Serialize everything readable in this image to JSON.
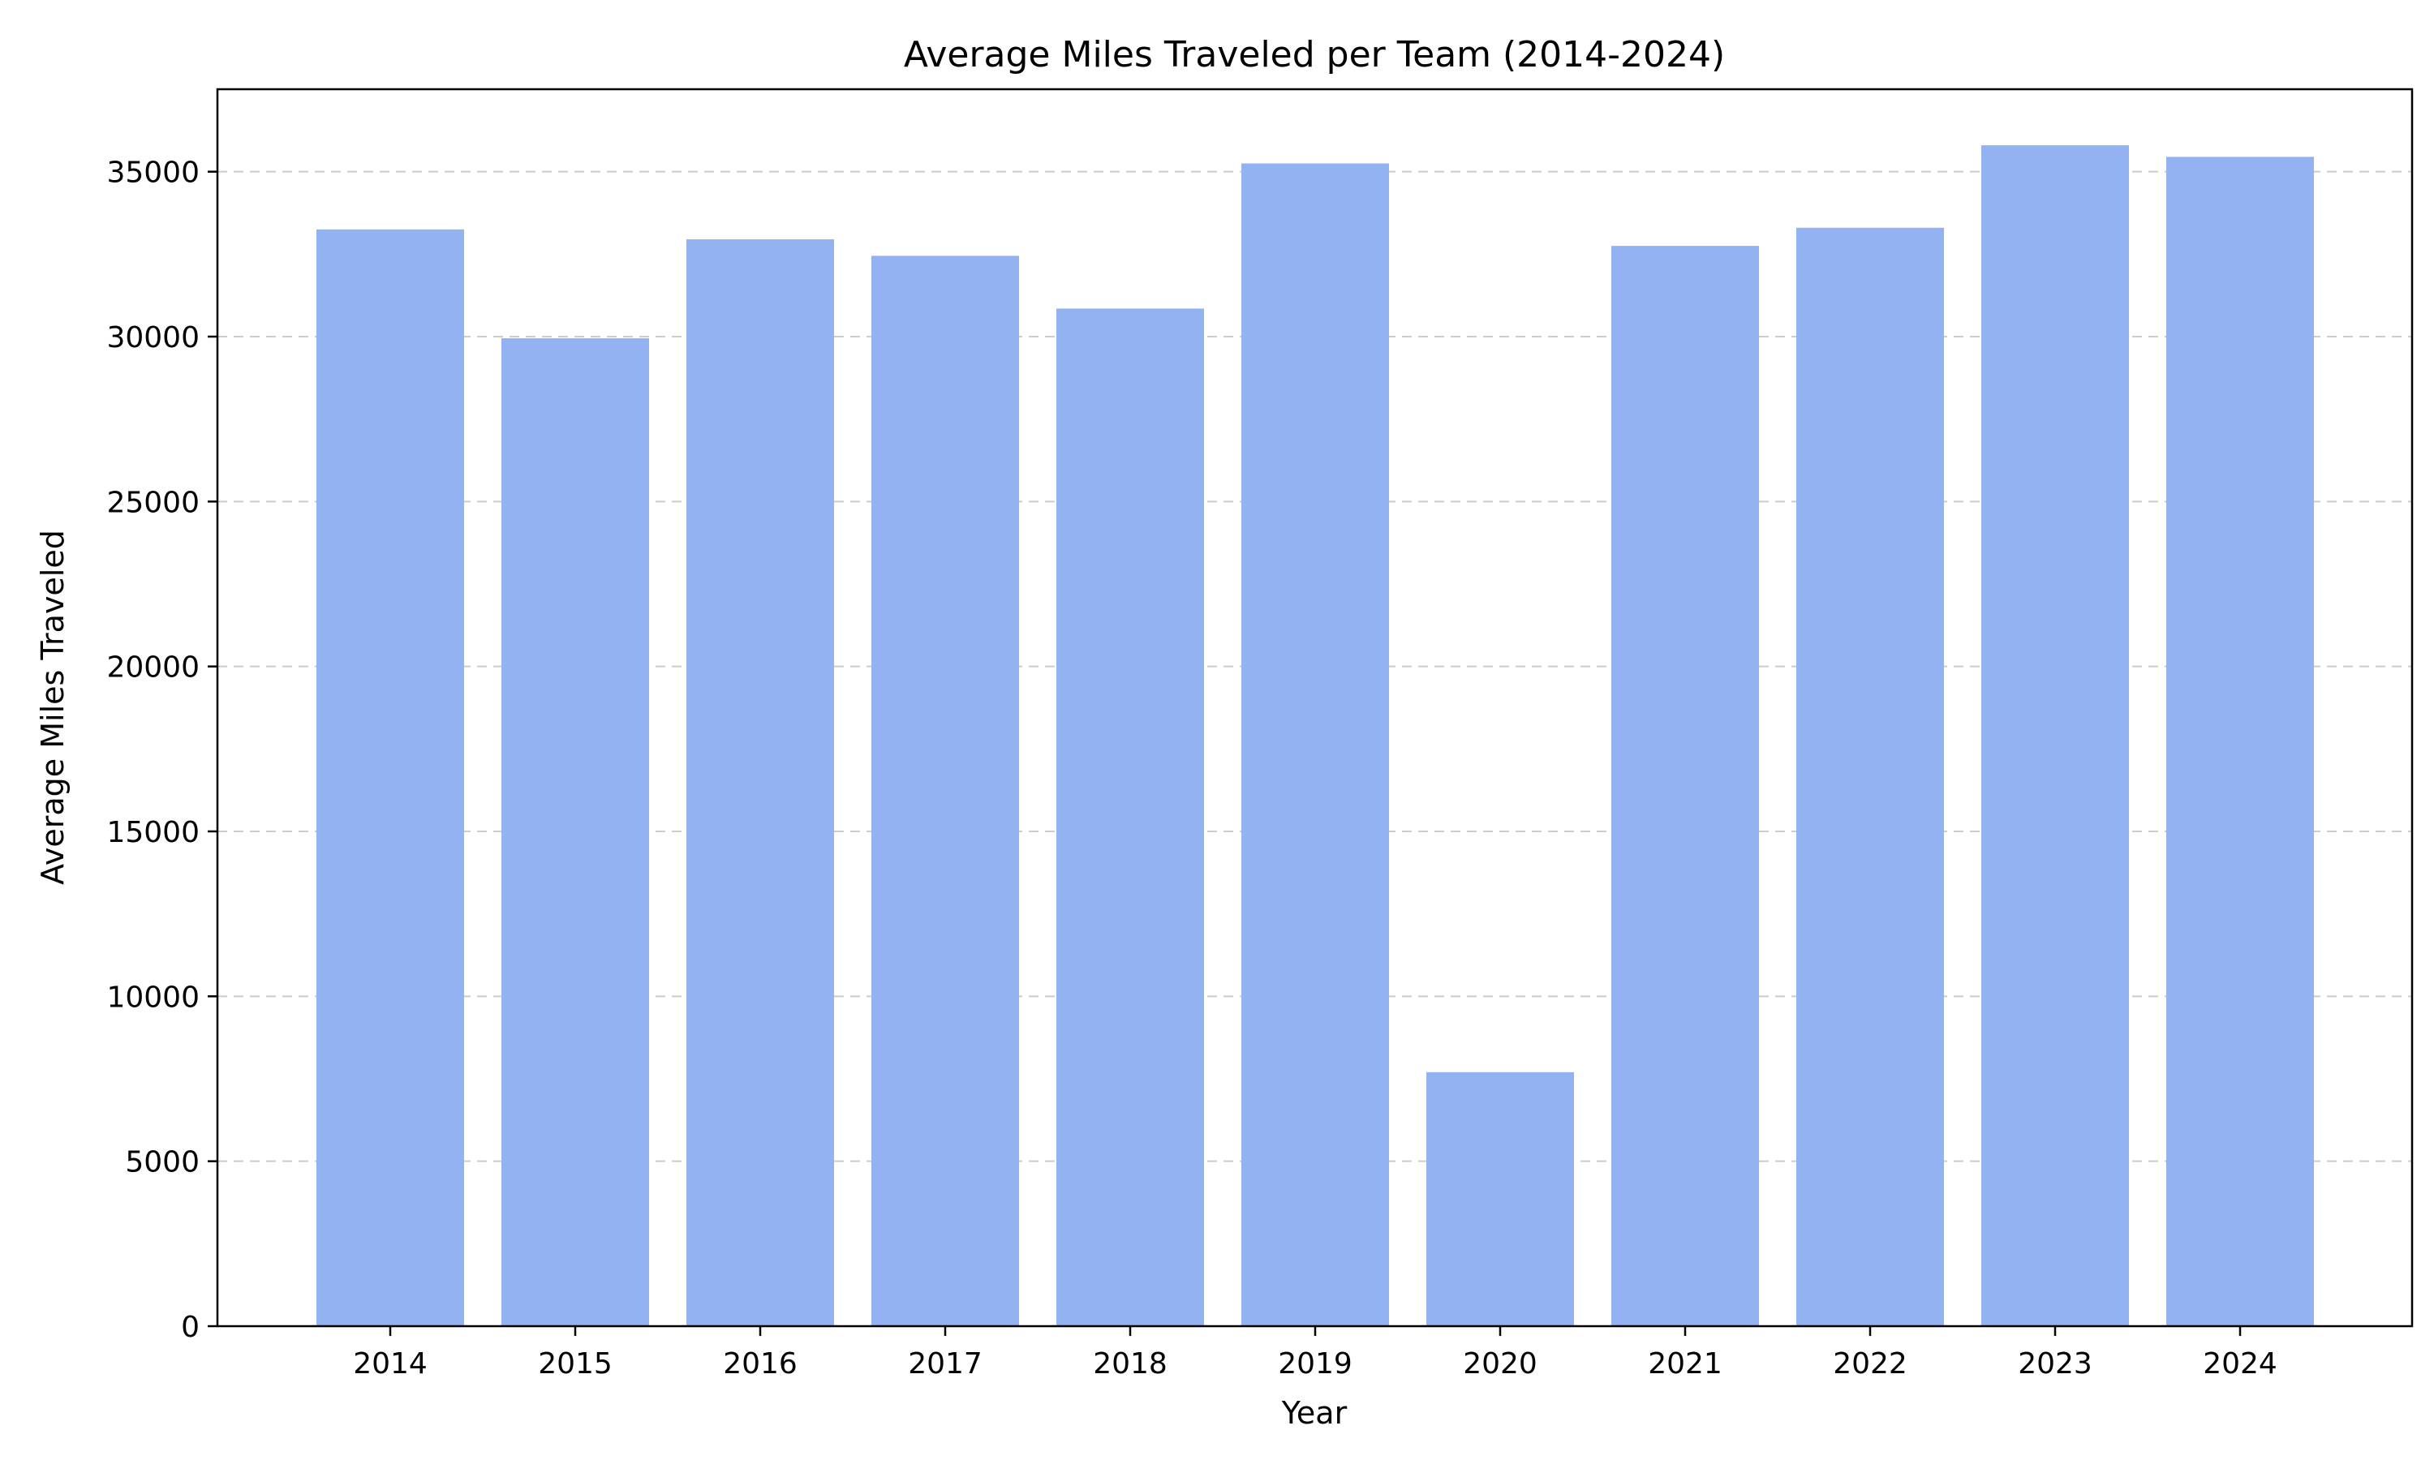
{
  "chart_data": {
    "type": "bar",
    "title": "Average Miles Traveled per Team (2014-2024)",
    "xlabel": "Year",
    "ylabel": "Average Miles Traveled",
    "categories": [
      "2014",
      "2015",
      "2016",
      "2017",
      "2018",
      "2019",
      "2020",
      "2021",
      "2022",
      "2023",
      "2024"
    ],
    "values": [
      33250,
      29950,
      32950,
      32450,
      30850,
      35250,
      7700,
      32750,
      33300,
      35800,
      35450
    ],
    "ylim": [
      0,
      37500
    ],
    "yticks": [
      0,
      5000,
      10000,
      15000,
      20000,
      25000,
      30000,
      35000
    ],
    "grid": "horizontal dashed",
    "bar_color": "#92b2f1"
  }
}
